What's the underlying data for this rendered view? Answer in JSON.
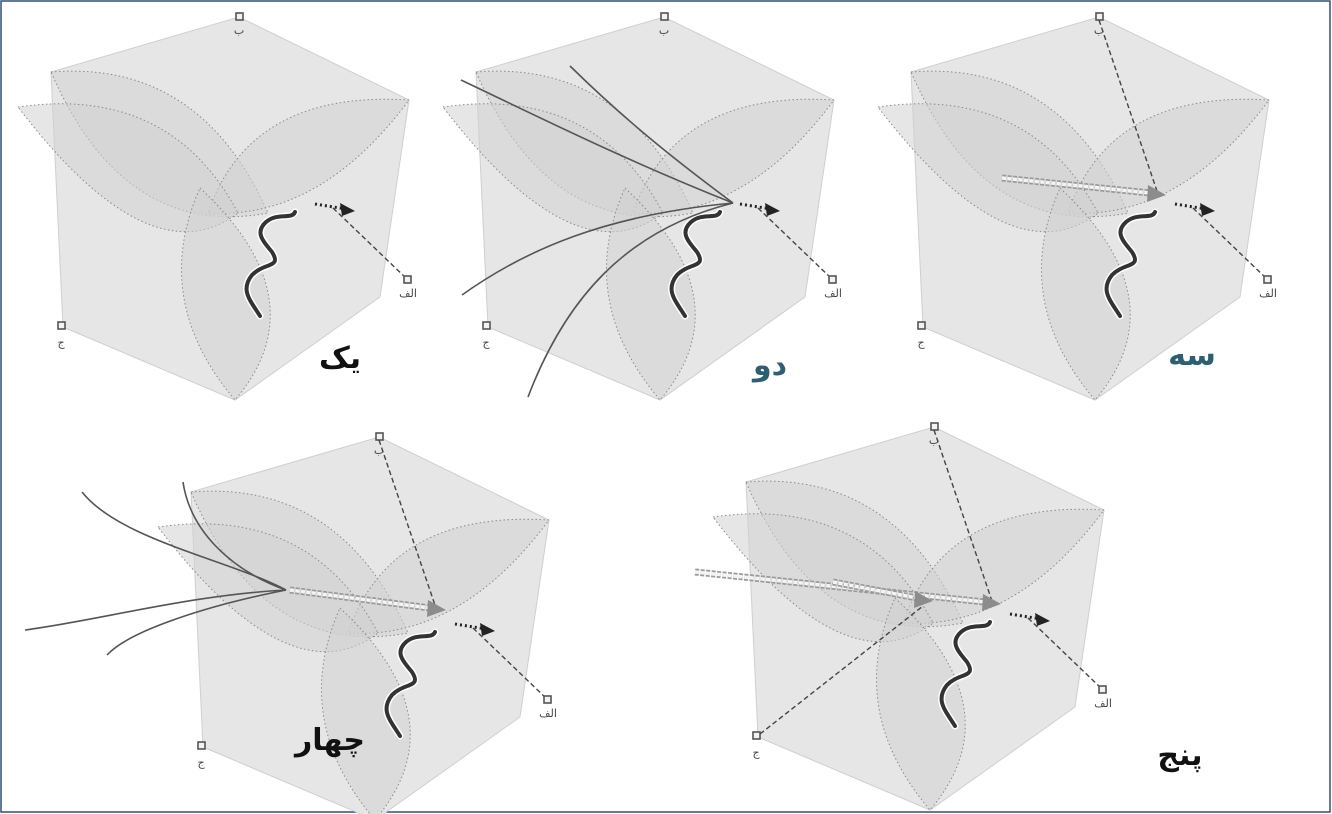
{
  "node_labels": {
    "a": "الف",
    "b": "ب",
    "c": "ج"
  },
  "panels": [
    {
      "title": "یک",
      "title_color": "#111111"
    },
    {
      "title": "دو",
      "title_color": "#2d5f73"
    },
    {
      "title": "سه",
      "title_color": "#2d5f73"
    },
    {
      "title": "چهار",
      "title_color": "#111111"
    },
    {
      "title": "پنج",
      "title_color": "#111111"
    }
  ]
}
